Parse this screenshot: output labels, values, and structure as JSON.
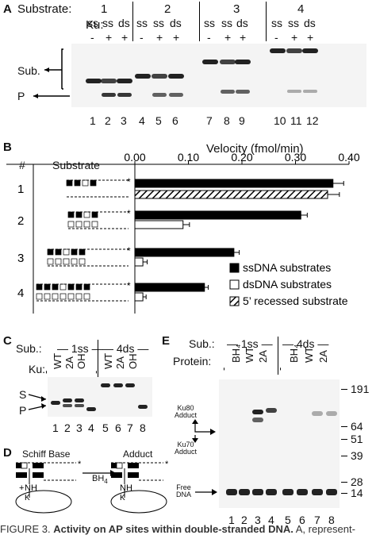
{
  "panelA": {
    "label": "A",
    "substrate_label": "Substrate:",
    "ku_label": "Ku:",
    "groups": [
      "1",
      "2",
      "3",
      "4"
    ],
    "strand_row": [
      "ss",
      "ss",
      "ds",
      "ss",
      "ss",
      "ds",
      "ss",
      "ss",
      "ds",
      "ss",
      "ss",
      "ds"
    ],
    "ku_row": [
      "-",
      "+",
      "+",
      "-",
      "+",
      "+",
      "-",
      "+",
      "+",
      "-",
      "+",
      "+"
    ],
    "sub_label": "Sub.",
    "p_label": "P",
    "lanes": [
      "1",
      "2",
      "3",
      "4",
      "5",
      "6",
      "7",
      "8",
      "9",
      "10",
      "11",
      "12"
    ]
  },
  "panelB": {
    "label": "B",
    "col_num": "#",
    "col_substrate": "Substrate",
    "velocity_label": "Velocity (fmol/min)",
    "rows": [
      "1",
      "2",
      "3",
      "4"
    ],
    "chart_data": {
      "type": "bar",
      "xlabel": "Velocity (fmol/min)",
      "xlim": [
        0,
        0.4
      ],
      "ticks": [
        "0.00",
        "0.10",
        "0.20",
        "0.30",
        "0.40"
      ],
      "substrates": [
        "1",
        "2",
        "3",
        "4"
      ],
      "series": [
        {
          "name": "ssDNA substrates",
          "values": [
            0.37,
            0.31,
            0.185,
            0.13
          ],
          "errors": [
            0.02,
            0.012,
            0.01,
            0.007
          ]
        },
        {
          "name": "dsDNA substrates",
          "values": [
            null,
            0.09,
            0.015,
            0.015
          ],
          "errors": [
            null,
            0.012,
            0.008,
            0.006
          ]
        },
        {
          "name": "5’ recessed substrate",
          "values": [
            0.36,
            null,
            null,
            null
          ],
          "errors": [
            0.022,
            null,
            null,
            null
          ]
        }
      ],
      "legend": [
        "ssDNA substrates",
        "dsDNA substrates",
        "5’ recessed substrate"
      ]
    }
  },
  "panelC": {
    "label": "C",
    "sub_label": "Sub.:",
    "group1": "1ss",
    "group2": "4ds",
    "ku_label": "Ku:",
    "ku_row": [
      "-",
      "WT",
      "2A",
      "OH",
      "-",
      "WT",
      "2A",
      "OH"
    ],
    "s_label": "S",
    "p_label": "P",
    "lanes": [
      "1",
      "2",
      "3",
      "4",
      "5",
      "6",
      "7",
      "8"
    ]
  },
  "panelD": {
    "label": "D",
    "schiff": "Schiff Base",
    "adduct": "Adduct",
    "reagent": "BH",
    "reagent_sub": "4",
    "nh": "NH",
    "nh_plus": "+",
    "k1": "K",
    "k2": "K",
    "star": "*"
  },
  "panelE": {
    "label": "E",
    "sub_label": "Sub.:",
    "group1": "1ss",
    "group2": "4ds",
    "protein_label": "Protein:",
    "protein_row": [
      "-",
      "BH₄",
      "WT",
      "2A",
      "-",
      "BH₄",
      "WT",
      "2A"
    ],
    "ku80": [
      "Ku80",
      "Adduct"
    ],
    "ku70": [
      "Ku70",
      "Adduct"
    ],
    "free": [
      "Free",
      "DNA"
    ],
    "markers": [
      "191",
      "64",
      "51",
      "39",
      "28",
      "14"
    ],
    "lanes": [
      "1",
      "2",
      "3",
      "4",
      "5",
      "6",
      "7",
      "8"
    ]
  },
  "caption": {
    "prefix": "FIGURE 3.",
    "title": "Activity on AP sites within double-stranded DNA.",
    "rest": " A, represent-"
  }
}
